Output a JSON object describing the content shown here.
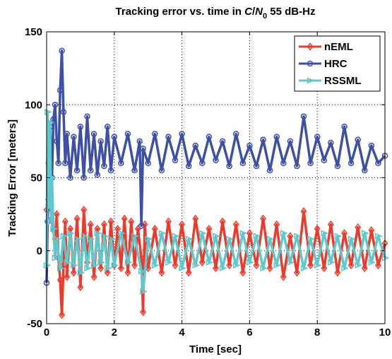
{
  "chart_data": {
    "type": "line",
    "title": {
      "prefix": "Tracking error vs. time in ",
      "c": "C",
      "slash": "/",
      "n": "N",
      "sub": "0",
      "suffix": " 55 dB-Hz"
    },
    "xlabel": "Time [sec]",
    "ylabel": "Tracking Error [meters]",
    "xlim": [
      0,
      10
    ],
    "ylim": [
      -50,
      150
    ],
    "xticks": [
      {
        "value": 0,
        "label": "0"
      },
      {
        "value": 2,
        "label": "2"
      },
      {
        "value": 4,
        "label": "4"
      },
      {
        "value": 6,
        "label": "6"
      },
      {
        "value": 8,
        "label": "8"
      },
      {
        "value": 10,
        "label": "10"
      }
    ],
    "yticks": [
      {
        "value": -50,
        "label": "-50"
      },
      {
        "value": 0,
        "label": "0"
      },
      {
        "value": 50,
        "label": "50"
      },
      {
        "value": 100,
        "label": "100"
      },
      {
        "value": 150,
        "label": "150"
      }
    ],
    "grid": true,
    "legend_position": "top-right",
    "series": [
      {
        "name": "nEML",
        "color": "#ee3a2c",
        "marker": "diamond",
        "x": [
          0,
          0.05,
          0.1,
          0.15,
          0.2,
          0.25,
          0.3,
          0.35,
          0.4,
          0.45,
          0.5,
          0.55,
          0.6,
          0.7,
          0.8,
          0.9,
          1.0,
          1.1,
          1.2,
          1.3,
          1.4,
          1.5,
          1.6,
          1.7,
          1.8,
          1.9,
          2.0,
          2.1,
          2.2,
          2.3,
          2.4,
          2.5,
          2.6,
          2.7,
          2.8,
          2.85,
          2.9,
          3.0,
          3.2,
          3.4,
          3.6,
          3.8,
          4.0,
          4.2,
          4.4,
          4.6,
          4.8,
          5.0,
          5.2,
          5.4,
          5.6,
          5.8,
          6.0,
          6.2,
          6.4,
          6.6,
          6.8,
          7.0,
          7.2,
          7.4,
          7.6,
          7.8,
          8.0,
          8.2,
          8.4,
          8.6,
          8.8,
          9.0,
          9.2,
          9.4,
          9.6,
          9.8,
          10.0
        ],
        "y": [
          28,
          35,
          30,
          22,
          14,
          8,
          25,
          -5,
          -20,
          -44,
          -10,
          20,
          -18,
          15,
          -15,
          22,
          -25,
          28,
          -8,
          18,
          -18,
          15,
          -12,
          18,
          -15,
          20,
          -10,
          15,
          -12,
          22,
          -15,
          20,
          -10,
          15,
          -5,
          -42,
          18,
          -12,
          15,
          -15,
          20,
          -10,
          18,
          -15,
          22,
          -8,
          15,
          -12,
          20,
          -10,
          18,
          -15,
          12,
          -10,
          22,
          -12,
          18,
          -18,
          10,
          -15,
          27,
          -10,
          15,
          -12,
          18,
          -15,
          12,
          -10,
          16,
          -12,
          14,
          -10,
          5
        ]
      },
      {
        "name": "HRC",
        "color": "#3d4fa6",
        "marker": "circle",
        "x": [
          0,
          0.03,
          0.06,
          0.1,
          0.13,
          0.16,
          0.2,
          0.25,
          0.3,
          0.35,
          0.4,
          0.45,
          0.5,
          0.55,
          0.6,
          0.7,
          0.8,
          0.9,
          1.0,
          1.1,
          1.2,
          1.3,
          1.4,
          1.5,
          1.6,
          1.7,
          1.8,
          1.9,
          2.0,
          2.2,
          2.4,
          2.6,
          2.75,
          2.8,
          2.85,
          3.0,
          3.2,
          3.4,
          3.6,
          3.8,
          4.0,
          4.2,
          4.4,
          4.6,
          4.8,
          5.0,
          5.2,
          5.4,
          5.6,
          5.8,
          6.0,
          6.2,
          6.4,
          6.6,
          6.8,
          7.0,
          7.2,
          7.4,
          7.6,
          7.8,
          8.0,
          8.2,
          8.4,
          8.6,
          8.8,
          9.0,
          9.2,
          9.4,
          9.6,
          9.8,
          10.0
        ],
        "y": [
          -22,
          20,
          60,
          85,
          70,
          50,
          90,
          100,
          75,
          60,
          110,
          137,
          95,
          60,
          80,
          50,
          78,
          55,
          85,
          50,
          92,
          55,
          80,
          52,
          75,
          58,
          85,
          55,
          78,
          60,
          80,
          55,
          75,
          17,
          70,
          60,
          80,
          55,
          78,
          62,
          80,
          58,
          72,
          60,
          78,
          62,
          75,
          58,
          80,
          60,
          72,
          58,
          76,
          55,
          78,
          60,
          75,
          58,
          92,
          60,
          78,
          62,
          74,
          58,
          85,
          60,
          76,
          55,
          72,
          60,
          65
        ]
      },
      {
        "name": "RSSML",
        "color": "#5ec8cc",
        "marker": "triangle-right",
        "x": [
          0,
          0.03,
          0.06,
          0.1,
          0.13,
          0.16,
          0.2,
          0.25,
          0.3,
          0.4,
          0.5,
          0.6,
          0.7,
          0.8,
          0.9,
          1.0,
          1.1,
          1.2,
          1.3,
          1.4,
          1.5,
          1.6,
          1.7,
          1.8,
          1.9,
          2.0,
          2.2,
          2.4,
          2.6,
          2.8,
          2.85,
          3.0,
          3.2,
          3.4,
          3.6,
          3.8,
          4.0,
          4.2,
          4.4,
          4.6,
          4.8,
          5.0,
          5.2,
          5.4,
          5.6,
          5.8,
          6.0,
          6.2,
          6.4,
          6.6,
          6.8,
          7.0,
          7.2,
          7.4,
          7.6,
          7.8,
          8.0,
          8.2,
          8.4,
          8.6,
          8.8,
          9.0,
          9.2,
          9.4,
          9.6,
          9.8,
          10.0
        ],
        "y": [
          -10,
          95,
          30,
          88,
          20,
          50,
          15,
          -5,
          8,
          -12,
          10,
          -8,
          12,
          -10,
          8,
          -15,
          10,
          -12,
          8,
          -10,
          12,
          -8,
          10,
          -12,
          8,
          -10,
          12,
          -8,
          10,
          -14,
          -28,
          8,
          -10,
          12,
          -8,
          10,
          -12,
          8,
          -10,
          12,
          -8,
          10,
          -12,
          8,
          -10,
          12,
          -8,
          10,
          -12,
          8,
          -10,
          12,
          -8,
          10,
          -12,
          8,
          -10,
          12,
          -8,
          10,
          -12,
          8,
          -10,
          12,
          -8,
          10,
          -5
        ]
      }
    ]
  }
}
